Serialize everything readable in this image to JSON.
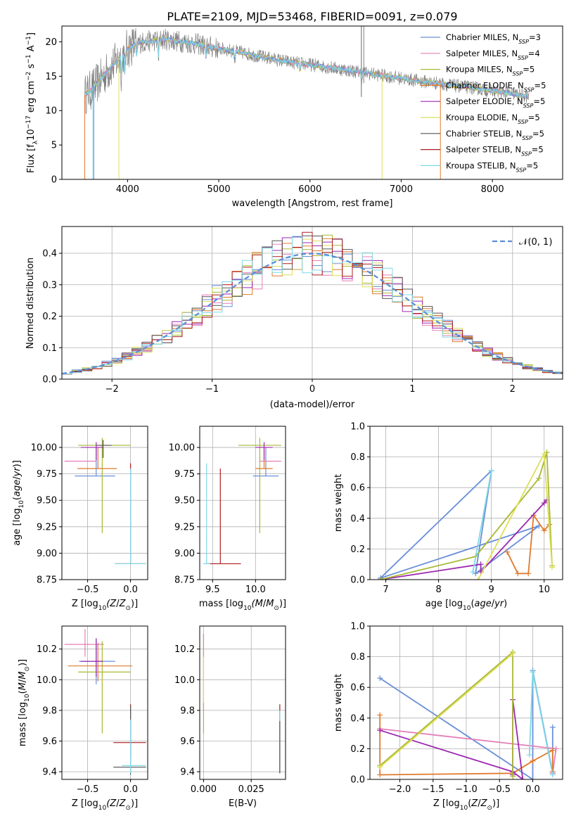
{
  "title": "PLATE=2109, MJD=53468, FIBERID=0091, z=0.079",
  "colors": {
    "c0": "#6a8fd8",
    "c1": "#e57fb8",
    "c2": "#a8b832",
    "c3": "#e07a2e",
    "c4": "#9c27b0",
    "c5": "#dede5a",
    "c6": "#555555",
    "c7": "#b01c1c",
    "c8": "#7fd8e6",
    "data": "#808080",
    "norm": "#5b8ed6",
    "grid": "#b0b0b0"
  },
  "chart_data": [
    {
      "id": "spectrum",
      "type": "line",
      "xlabel": "wavelength [Angstrom, rest frame]",
      "ylabel_main": "Flux [f",
      "ylabel_sub": "λ",
      "ylabel_rest": "10",
      "ylabel_exp1": "−17",
      "ylabel_units": " erg cm",
      "ylabel_exp2": "−2",
      "ylabel_units2": " s",
      "ylabel_exp3": "−1",
      "ylabel_units3": " A",
      "ylabel_exp4": "−1",
      "ylabel_end": "]",
      "xlim": [
        3280,
        8770
      ],
      "ylim": [
        0,
        22.3
      ],
      "xticks": [
        "4000",
        "5000",
        "6000",
        "7000",
        "8000"
      ],
      "xtick_values": [
        4000,
        5000,
        6000,
        7000,
        8000
      ],
      "yticks": [
        "0",
        "5",
        "10",
        "15",
        "20"
      ],
      "ytick_values": [
        0,
        5,
        10,
        15,
        20
      ],
      "legend": [
        {
          "name": "Chabrier MILES, N",
          "sub": "SSP",
          "suffix": "=3",
          "color": "#6a8fd8"
        },
        {
          "name": "Salpeter MILES, N",
          "sub": "SSP",
          "suffix": "=4",
          "color": "#e57fb8"
        },
        {
          "name": "Kroupa MILES, N",
          "sub": "SSP",
          "suffix": "=5",
          "color": "#a8b832"
        },
        {
          "name": "Chabrier ELODIE, N",
          "sub": "SSP",
          "suffix": "=5",
          "color": "#e07a2e"
        },
        {
          "name": "Salpeter ELODIE, N",
          "sub": "SSP",
          "suffix": "=5",
          "color": "#9c27b0"
        },
        {
          "name": "Kroupa ELODIE, N",
          "sub": "SSP",
          "suffix": "=5",
          "color": "#dede5a"
        },
        {
          "name": "Chabrier STELIB, N",
          "sub": "SSP",
          "suffix": "=5",
          "color": "#555555"
        },
        {
          "name": "Salpeter STELIB, N",
          "sub": "SSP",
          "suffix": "=5",
          "color": "#b01c1c"
        },
        {
          "name": "Kroupa STELIB, N",
          "sub": "SSP",
          "suffix": "=5",
          "color": "#7fd8e6"
        }
      ],
      "continuum": [
        [
          3530,
          12.3
        ],
        [
          3600,
          13.0
        ],
        [
          3700,
          14.5
        ],
        [
          3800,
          16.0
        ],
        [
          3900,
          17.5
        ],
        [
          4000,
          19.0
        ],
        [
          4100,
          19.8
        ],
        [
          4200,
          20.0
        ],
        [
          4400,
          20.4
        ],
        [
          4600,
          20.0
        ],
        [
          4800,
          19.6
        ],
        [
          5000,
          19.0
        ],
        [
          5200,
          18.6
        ],
        [
          5400,
          18.0
        ],
        [
          5600,
          17.5
        ],
        [
          5800,
          17.0
        ],
        [
          6000,
          16.7
        ],
        [
          6200,
          16.3
        ],
        [
          6400,
          15.9
        ],
        [
          6600,
          15.5
        ],
        [
          6800,
          15.1
        ],
        [
          7000,
          14.7
        ],
        [
          7200,
          14.3
        ],
        [
          7400,
          14.0
        ],
        [
          7600,
          13.6
        ],
        [
          7800,
          13.3
        ],
        [
          8000,
          12.9
        ],
        [
          8200,
          12.5
        ],
        [
          8400,
          12.0
        ]
      ]
    },
    {
      "id": "residuals",
      "type": "step",
      "xlabel": "(data-model)/error",
      "ylabel": "Normed distribution",
      "xlim": [
        -2.5,
        2.5
      ],
      "ylim": [
        0,
        0.485
      ],
      "xticks": [
        "−2",
        "−1",
        "0",
        "1",
        "2"
      ],
      "xtick_values": [
        -2,
        -1,
        0,
        1,
        2
      ],
      "yticks": [
        "0.0",
        "0.1",
        "0.2",
        "0.3",
        "0.4"
      ],
      "ytick_values": [
        0,
        0.1,
        0.2,
        0.3,
        0.4
      ],
      "legend": "𝒩(0, 1)",
      "bin_width": 0.1,
      "bin_start": -2.5
    },
    {
      "id": "age_vs_Z",
      "type": "errorbar",
      "xlabel": "Z [log",
      "xlabel_sub": "10",
      "xlabel_rest": "(Z/Z",
      "xlabel_odot": "⊙",
      "xlabel_end": ")]",
      "ylabel": "age  [log",
      "ylabel_sub": "10",
      "ylabel_rest": "(age/yr)]",
      "xlim": [
        -0.8,
        0.2
      ],
      "ylim": [
        8.75,
        10.2
      ],
      "xticks": [
        "−0.5",
        "0.0"
      ],
      "xtick_values": [
        -0.5,
        0
      ],
      "yticks": [
        "8.75",
        "9.00",
        "9.25",
        "9.50",
        "9.75",
        "10.00"
      ],
      "ytick_values": [
        8.75,
        9.0,
        9.25,
        9.5,
        9.75,
        10.0
      ],
      "points": [
        {
          "x": -0.4,
          "xerr": [
            0.25,
            0.22
          ],
          "y": 9.73,
          "yerr": [
            0,
            0.27
          ],
          "c": "c0"
        },
        {
          "x": -0.53,
          "xerr": [
            0.24,
            0.13
          ],
          "y": 9.87,
          "yerr": [
            0,
            0
          ],
          "c": "c1"
        },
        {
          "x": -0.33,
          "xerr": [
            0.28,
            0.33
          ],
          "y": 10.02,
          "yerr": [
            0.83,
            0.07
          ],
          "c": "c2"
        },
        {
          "x": -0.38,
          "xerr": [
            0.24,
            0.22
          ],
          "y": 9.8,
          "yerr": [
            0,
            0.2
          ],
          "c": "c3"
        },
        {
          "x": -0.4,
          "xerr": [
            0.18,
            0.08
          ],
          "y": 10.0,
          "yerr": [
            0.12,
            0.05
          ],
          "c": "c4"
        },
        {
          "x": -0.32,
          "xerr": [
            0.08,
            0.1
          ],
          "y": 10.02,
          "yerr": [
            0.12,
            0.05
          ],
          "c": "c6"
        },
        {
          "x": 0.0,
          "xerr": [
            0.18,
            0.18
          ],
          "y": 8.9,
          "yerr": [
            0,
            0.95
          ],
          "c": "c7"
        },
        {
          "x": 0.0,
          "xerr": [
            0.18,
            0.18
          ],
          "y": 8.9,
          "yerr": [
            0,
            0.9
          ],
          "c": "c8"
        }
      ]
    },
    {
      "id": "age_vs_mass",
      "type": "errorbar",
      "xlabel": "mass [log",
      "xlabel_sub": "10",
      "xlabel_rest": "(M/M",
      "xlabel_odot": "⊙",
      "xlabel_end": ")]",
      "xlim": [
        9.35,
        10.35
      ],
      "ylim": [
        8.75,
        10.2
      ],
      "xticks": [
        "9.5",
        "10.0"
      ],
      "xtick_values": [
        9.5,
        10.0
      ],
      "yticks": [
        "8.75",
        "9.00",
        "9.25",
        "9.50",
        "9.75",
        "10.00"
      ],
      "ytick_values": [
        8.75,
        9.0,
        9.25,
        9.5,
        9.75,
        10.0
      ],
      "points": [
        {
          "x": 10.12,
          "xerr": [
            0.15,
            0.15
          ],
          "y": 9.73,
          "yerr": [
            0,
            0.27
          ],
          "c": "c0"
        },
        {
          "x": 10.15,
          "xerr": [
            0.1,
            0.15
          ],
          "y": 9.87,
          "yerr": [
            0,
            0
          ],
          "c": "c1"
        },
        {
          "x": 10.05,
          "xerr": [
            0.25,
            0.25
          ],
          "y": 10.02,
          "yerr": [
            0.83,
            0.07
          ],
          "c": "c2"
        },
        {
          "x": 10.1,
          "xerr": [
            0.1,
            0.1
          ],
          "y": 9.8,
          "yerr": [
            0,
            0.2
          ],
          "c": "c3"
        },
        {
          "x": 10.1,
          "xerr": [
            0.1,
            0.1
          ],
          "y": 10.0,
          "yerr": [
            0.12,
            0.05
          ],
          "c": "c4"
        },
        {
          "x": 9.59,
          "xerr": [
            0.17,
            0.24
          ],
          "y": 8.9,
          "yerr": [
            0,
            0.9
          ],
          "c": "c7"
        },
        {
          "x": 9.43,
          "xerr": [
            0.04,
            0.04
          ],
          "y": 8.9,
          "yerr": [
            0,
            0.95
          ],
          "c": "c8"
        }
      ]
    },
    {
      "id": "weight_vs_age",
      "type": "line",
      "xlabel": "age  [log",
      "xlabel_sub": "10",
      "xlabel_rest": "(age/yr)]",
      "ylabel": "mass weight",
      "xlim": [
        6.7,
        10.35
      ],
      "ylim": [
        0,
        1
      ],
      "xticks": [
        "7",
        "8",
        "9",
        "10"
      ],
      "xtick_values": [
        7,
        8,
        9,
        10
      ],
      "yticks": [
        "0.0",
        "0.2",
        "0.4",
        "0.6",
        "0.8",
        "1.0"
      ],
      "ytick_values": [
        0,
        0.2,
        0.4,
        0.6,
        0.8,
        1.0
      ],
      "series": [
        {
          "c": "c0",
          "x": [
            6.9,
            9.9,
            8.7,
            9.0,
            6.9
          ],
          "y": [
            0.01,
            0.35,
            0.04,
            0.71,
            0.01
          ]
        },
        {
          "c": "c3",
          "x": [
            9.3,
            9.5,
            9.7,
            9.8,
            10.0,
            10.1
          ],
          "y": [
            0.18,
            0.04,
            0.04,
            0.42,
            0.32,
            0.36
          ]
        },
        {
          "c": "c4",
          "x": [
            6.9,
            8.8,
            8.8,
            10.0,
            10.05
          ],
          "y": [
            0.0,
            0.1,
            0.05,
            0.5,
            0.52
          ]
        },
        {
          "c": "c2",
          "x": [
            6.9,
            8.7,
            9.9,
            10.05,
            10.15
          ],
          "y": [
            0.0,
            0.15,
            0.66,
            0.83,
            0.09
          ]
        },
        {
          "c": "c5",
          "x": [
            8.75,
            10.0,
            10.15
          ],
          "y": [
            0.0,
            0.82,
            0.08
          ]
        },
        {
          "c": "c8",
          "x": [
            8.65,
            9.0
          ],
          "y": [
            0.05,
            0.71
          ]
        }
      ]
    },
    {
      "id": "mass_vs_Z",
      "type": "errorbar",
      "xlabel": "Z [log",
      "xlabel_sub": "10",
      "xlabel_rest": "(Z/Z",
      "xlabel_odot": "⊙",
      "xlabel_end": ")]",
      "ylabel": "mass [log",
      "ylabel_sub": "10",
      "ylabel_rest": "(M/M",
      "ylabel_odot": "⊙",
      "ylabel_end": ")]",
      "xlim": [
        -0.8,
        0.2
      ],
      "ylim": [
        9.35,
        10.35
      ],
      "xticks": [
        "−0.5",
        "0.0"
      ],
      "xtick_values": [
        -0.5,
        0
      ],
      "yticks": [
        "9.4",
        "9.6",
        "9.8",
        "10.0",
        "10.2"
      ],
      "ytick_values": [
        9.4,
        9.6,
        9.8,
        10.0,
        10.2
      ],
      "points": [
        {
          "x": -0.4,
          "xerr": [
            0.2,
            0.22
          ],
          "y": 10.12,
          "yerr": [
            0.15,
            0.15
          ],
          "c": "c0"
        },
        {
          "x": -0.53,
          "xerr": [
            0.24,
            0.22
          ],
          "y": 10.23,
          "yerr": [
            0.08,
            0.1
          ],
          "c": "c1"
        },
        {
          "x": -0.33,
          "xerr": [
            0.28,
            0.33
          ],
          "y": 10.05,
          "yerr": [
            0.4,
            0.2
          ],
          "c": "c2"
        },
        {
          "x": -0.38,
          "xerr": [
            0.35,
            0.4
          ],
          "y": 10.09,
          "yerr": [
            0.1,
            0.15
          ],
          "c": "c3"
        },
        {
          "x": -0.4,
          "xerr": [
            0.18,
            0.08
          ],
          "y": 10.12,
          "yerr": [
            0.1,
            0.15
          ],
          "c": "c4"
        },
        {
          "x": 0.0,
          "xerr": [
            0.2,
            0.18
          ],
          "y": 9.59,
          "yerr": [
            0.1,
            0.25
          ],
          "c": "c7"
        },
        {
          "x": 0.0,
          "xerr": [
            0.2,
            0.18
          ],
          "y": 9.43,
          "yerr": [
            0.05,
            0.4
          ],
          "c": "c6"
        },
        {
          "x": 0.0,
          "xerr": [
            0.1,
            0.18
          ],
          "y": 9.44,
          "yerr": [
            0.05,
            0.3
          ],
          "c": "c8"
        }
      ]
    },
    {
      "id": "mass_vs_EBV",
      "type": "errorbar",
      "xlabel": "E(B-V)",
      "xlim": [
        -0.002,
        0.043
      ],
      "ylim": [
        9.35,
        10.35
      ],
      "xticks": [
        "0.000",
        "0.025"
      ],
      "xtick_values": [
        0,
        0.025
      ],
      "yticks": [
        "9.4",
        "9.6",
        "9.8",
        "10.0",
        "10.2"
      ],
      "ytick_values": [
        9.4,
        9.6,
        9.8,
        10.0,
        10.2
      ],
      "points": [
        {
          "x": 0.0,
          "xerr": [
            0,
            0
          ],
          "y": 10.15,
          "yerr": [
            0.5,
            0.15
          ],
          "c": "c2"
        },
        {
          "x": 0.0,
          "xerr": [
            0,
            0
          ],
          "y": 10.2,
          "yerr": [
            0.4,
            0.1
          ],
          "c": "c1"
        },
        {
          "x": 0.0,
          "xerr": [
            0,
            0
          ],
          "y": 10.05,
          "yerr": [
            0.2,
            0.1
          ],
          "c": "c5"
        },
        {
          "x": 0.04,
          "xerr": [
            0,
            0
          ],
          "y": 9.59,
          "yerr": [
            0.2,
            0.25
          ],
          "c": "c7"
        },
        {
          "x": 0.04,
          "xerr": [
            0,
            0
          ],
          "y": 9.45,
          "yerr": [
            0.05,
            0.35
          ],
          "c": "c8"
        },
        {
          "x": 0.04,
          "xerr": [
            0,
            0
          ],
          "y": 9.43,
          "yerr": [
            0.04,
            0.3
          ],
          "c": "c6"
        }
      ]
    },
    {
      "id": "weight_vs_Z",
      "type": "line",
      "xlabel": "Z [log",
      "xlabel_sub": "10",
      "xlabel_rest": "(Z/Z",
      "xlabel_odot": "⊙",
      "xlabel_end": ")]",
      "ylabel": "mass weight",
      "xlim": [
        -2.45,
        0.45
      ],
      "ylim": [
        0,
        1
      ],
      "xticks": [
        "−2.0",
        "−1.5",
        "−1.0",
        "−0.5",
        "0.0"
      ],
      "xtick_values": [
        -2.0,
        -1.5,
        -1.0,
        -0.5,
        0.0
      ],
      "yticks": [
        "0.0",
        "0.2",
        "0.4",
        "0.6",
        "0.8",
        "1.0"
      ],
      "ytick_values": [
        0,
        0.2,
        0.4,
        0.6,
        0.8,
        1.0
      ],
      "series": [
        {
          "c": "c0",
          "x": [
            -2.3,
            0.0,
            0.0,
            0.3,
            0.3
          ],
          "y": [
            0.66,
            0.0,
            0.71,
            0.04,
            0.34
          ]
        },
        {
          "c": "c1",
          "x": [
            -2.3,
            0.35,
            0.3
          ],
          "y": [
            0.33,
            0.2,
            0.04
          ]
        },
        {
          "c": "c3",
          "x": [
            -2.3,
            -2.3,
            -0.3,
            0.0,
            0.3,
            0.3
          ],
          "y": [
            0.42,
            0.03,
            0.04,
            0.12,
            0.19,
            0.05
          ]
        },
        {
          "c": "c4",
          "x": [
            -2.3,
            -0.3,
            -0.15,
            -0.3,
            -0.3
          ],
          "y": [
            0.32,
            0.05,
            0.0,
            0.52,
            0.03
          ]
        },
        {
          "c": "c2",
          "x": [
            -2.3,
            -0.3,
            -0.3
          ],
          "y": [
            0.09,
            0.83,
            0.02
          ]
        },
        {
          "c": "c5",
          "x": [
            -2.3,
            -0.3
          ],
          "y": [
            0.08,
            0.82
          ]
        },
        {
          "c": "c8",
          "x": [
            -0.05,
            0.0,
            0.3
          ],
          "y": [
            0.16,
            0.7,
            0.03
          ]
        }
      ]
    }
  ]
}
